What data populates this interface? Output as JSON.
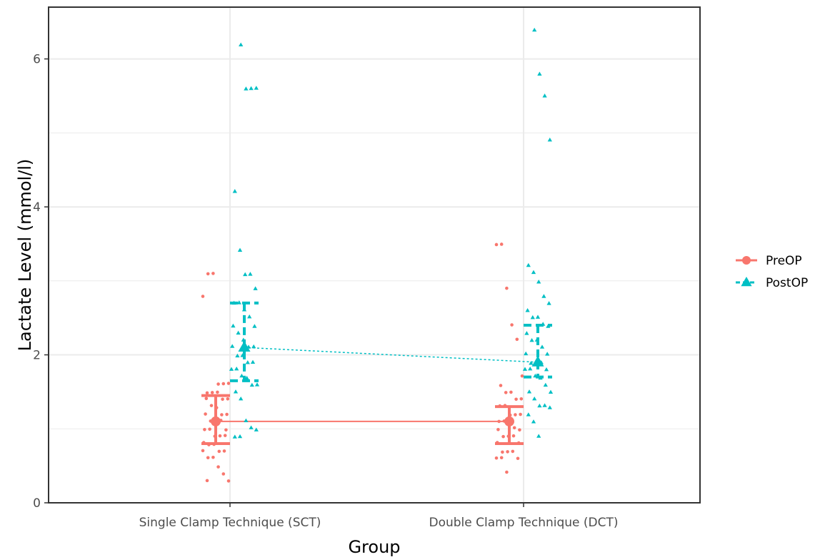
{
  "chart_data": {
    "type": "scatter",
    "title": "",
    "xlabel": "Group",
    "ylabel": "Lactate Level (mmol/l)",
    "categories": [
      "Single Clamp Technique (SCT)",
      "Double Clamp Technique (DCT)"
    ],
    "ylim": [
      0,
      6.7
    ],
    "yticks": [
      0,
      2,
      4,
      6
    ],
    "grid": true,
    "legend_position": "right",
    "series": [
      {
        "name": "PreOP",
        "color": "#F8766D",
        "marker": "circle",
        "line_style": "solid",
        "summary": [
          {
            "category": "Single Clamp Technique (SCT)",
            "median": 1.1,
            "lower": 0.8,
            "upper": 1.45
          },
          {
            "category": "Double Clamp Technique (DCT)",
            "median": 1.1,
            "lower": 0.8,
            "upper": 1.3
          }
        ],
        "points": [
          {
            "category": 0,
            "y": [
              2.8,
              3.1,
              3.1,
              1.6,
              1.6,
              1.6,
              1.5,
              1.5,
              1.5,
              1.4,
              1.4,
              1.4,
              1.3,
              1.3,
              1.2,
              1.2,
              1.2,
              1.1,
              1.1,
              1.1,
              1.0,
              1.0,
              1.0,
              0.9,
              0.9,
              0.9,
              0.8,
              0.8,
              0.8,
              0.7,
              0.7,
              0.7,
              0.6,
              0.6,
              0.5,
              0.4,
              0.3,
              0.3
            ]
          },
          {
            "category": 1,
            "y": [
              3.5,
              3.5,
              2.9,
              2.4,
              2.2,
              1.7,
              1.6,
              1.5,
              1.5,
              1.4,
              1.4,
              1.3,
              1.3,
              1.2,
              1.2,
              1.2,
              1.1,
              1.1,
              1.1,
              1.0,
              1.0,
              1.0,
              0.9,
              0.9,
              0.9,
              0.8,
              0.8,
              0.7,
              0.7,
              0.7,
              0.6,
              0.6,
              0.6,
              0.4
            ]
          }
        ]
      },
      {
        "name": "PostOP",
        "color": "#00BFC4",
        "marker": "triangle",
        "line_style": "dashed",
        "summary": [
          {
            "category": "Single Clamp Technique (SCT)",
            "median": 2.1,
            "lower": 1.65,
            "upper": 2.7
          },
          {
            "category": "Double Clamp Technique (DCT)",
            "median": 1.9,
            "lower": 1.7,
            "upper": 2.4
          }
        ],
        "points": [
          {
            "category": 0,
            "y": [
              6.2,
              5.6,
              5.6,
              5.6,
              4.2,
              3.4,
              3.1,
              3.1,
              2.9,
              2.7,
              2.7,
              2.6,
              2.5,
              2.4,
              2.4,
              2.3,
              2.2,
              2.1,
              2.1,
              2.1,
              2.0,
              2.0,
              1.9,
              1.9,
              1.8,
              1.8,
              1.7,
              1.7,
              1.6,
              1.6,
              1.5,
              1.4,
              1.1,
              1.0,
              1.0,
              0.9,
              0.9
            ]
          },
          {
            "category": 1,
            "y": [
              6.4,
              5.8,
              5.5,
              4.9,
              3.2,
              3.1,
              3.0,
              2.8,
              2.7,
              2.6,
              2.5,
              2.5,
              2.4,
              2.4,
              2.3,
              2.2,
              2.2,
              2.1,
              2.0,
              2.0,
              1.9,
              1.9,
              1.9,
              1.8,
              1.8,
              1.8,
              1.7,
              1.7,
              1.6,
              1.5,
              1.5,
              1.4,
              1.3,
              1.3,
              1.3,
              1.2,
              1.1,
              0.9
            ]
          }
        ]
      }
    ]
  }
}
